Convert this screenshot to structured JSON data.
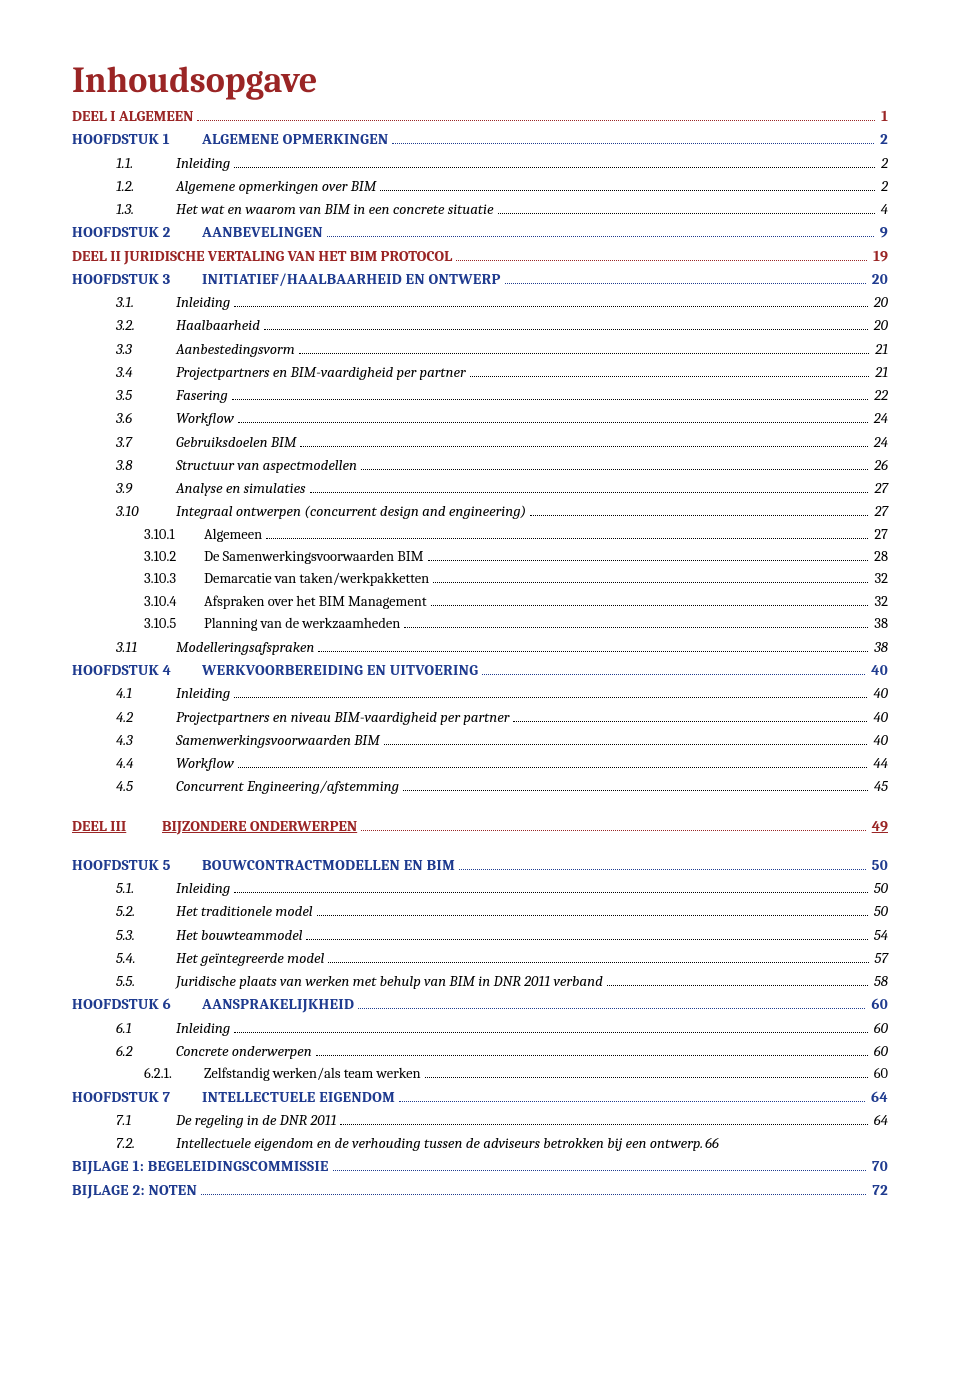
{
  "title": "Inhoudsopgave",
  "colors": {
    "accent_red": "#9a2525",
    "accent_blue": "#1f3b8f",
    "text_black": "#000000",
    "background": "#ffffff"
  },
  "typography": {
    "title_fontsize_pt": 27,
    "body_fontsize_pt": 11.5,
    "font_family": "Cambria"
  },
  "toc": [
    {
      "type": "part",
      "label": "DEEL I ALGEMEEN",
      "page": "1",
      "color": "red",
      "bold": true,
      "level": 0
    },
    {
      "type": "chapter",
      "num": "HOOFDSTUK 1",
      "label": "ALGEMENE OPMERKINGEN",
      "page": "2",
      "color": "blue",
      "bold": true,
      "smallcaps": true,
      "level": 0
    },
    {
      "type": "section",
      "num": "1.1.",
      "label": "Inleiding",
      "page": "2",
      "color": "black",
      "italic": true,
      "level": 1
    },
    {
      "type": "section",
      "num": "1.2.",
      "label": "Algemene opmerkingen over BIM",
      "page": "2",
      "color": "black",
      "italic": true,
      "level": 1
    },
    {
      "type": "section",
      "num": "1.3.",
      "label": "Het wat en waarom van BIM in een concrete situatie",
      "page": "4",
      "color": "black",
      "italic": true,
      "level": 1
    },
    {
      "type": "chapter",
      "num": "HOOFDSTUK 2",
      "label": "AANBEVELINGEN",
      "page": "9",
      "color": "blue",
      "bold": true,
      "smallcaps": true,
      "level": 0
    },
    {
      "type": "part",
      "label": "DEEL II JURIDISCHE VERTALING VAN HET BIM PROTOCOL",
      "page": "19",
      "color": "red",
      "bold": true,
      "level": 0
    },
    {
      "type": "chapter",
      "num": "HOOFDSTUK 3",
      "label": "INITIATIEF/HAALBAARHEID EN ONTWERP",
      "page": "20",
      "color": "blue",
      "bold": true,
      "smallcaps": true,
      "level": 0
    },
    {
      "type": "section",
      "num": "3.1.",
      "label": "Inleiding",
      "page": "20",
      "color": "black",
      "italic": true,
      "level": 1
    },
    {
      "type": "section",
      "num": "3.2.",
      "label": "Haalbaarheid",
      "page": "20",
      "color": "black",
      "italic": true,
      "level": 1
    },
    {
      "type": "section",
      "num": "3.3",
      "label": "Aanbestedingsvorm",
      "page": "21",
      "color": "black",
      "italic": true,
      "level": 1
    },
    {
      "type": "section",
      "num": "3.4",
      "label": "Projectpartners en BIM-vaardigheid per partner",
      "page": "21",
      "color": "black",
      "italic": true,
      "level": 1
    },
    {
      "type": "section",
      "num": "3.5",
      "label": "Fasering",
      "page": "22",
      "color": "black",
      "italic": true,
      "level": 1
    },
    {
      "type": "section",
      "num": "3.6",
      "label": "Workflow",
      "page": "24",
      "color": "black",
      "italic": true,
      "level": 1
    },
    {
      "type": "section",
      "num": "3.7",
      "label": "Gebruiksdoelen BIM",
      "page": "24",
      "color": "black",
      "italic": true,
      "level": 1
    },
    {
      "type": "section",
      "num": "3.8",
      "label": "Structuur van aspectmodellen",
      "page": "26",
      "color": "black",
      "italic": true,
      "level": 1
    },
    {
      "type": "section",
      "num": "3.9",
      "label": "Analyse en simulaties",
      "page": "27",
      "color": "black",
      "italic": true,
      "level": 1
    },
    {
      "type": "section",
      "num": "3.10",
      "label": "Integraal ontwerpen (concurrent design and engineering)",
      "page": "27",
      "color": "black",
      "italic": true,
      "level": 1
    },
    {
      "type": "subsection",
      "num": "3.10.1",
      "label": "Algemeen",
      "page": "27",
      "color": "black",
      "level": 2
    },
    {
      "type": "subsection",
      "num": "3.10.2",
      "label": "De Samenwerkingsvoorwaarden BIM",
      "page": "28",
      "color": "black",
      "level": 2
    },
    {
      "type": "subsection",
      "num": "3.10.3",
      "label": "Demarcatie van taken/werkpakketten",
      "page": "32",
      "color": "black",
      "level": 2
    },
    {
      "type": "subsection",
      "num": "3.10.4",
      "label": "Afspraken over het BIM Management",
      "page": "32",
      "color": "black",
      "level": 2
    },
    {
      "type": "subsection",
      "num": "3.10.5",
      "label": "Planning van de werkzaamheden",
      "page": "38",
      "color": "black",
      "level": 2
    },
    {
      "type": "section",
      "num": "3.11",
      "label": "Modelleringsafspraken",
      "page": "38",
      "color": "black",
      "italic": true,
      "level": 1
    },
    {
      "type": "chapter",
      "num": "HOOFDSTUK 4",
      "label": "WERKVOORBEREIDING EN UITVOERING",
      "page": "40",
      "color": "blue",
      "bold": true,
      "smallcaps": true,
      "level": 0
    },
    {
      "type": "section",
      "num": "4.1",
      "label": "Inleiding",
      "page": "40",
      "color": "black",
      "italic": true,
      "level": 1
    },
    {
      "type": "section",
      "num": "4.2",
      "label": "Projectpartners en niveau BIM-vaardigheid per partner",
      "page": "40",
      "color": "black",
      "italic": true,
      "level": 1
    },
    {
      "type": "section",
      "num": "4.3",
      "label": "Samenwerkingsvoorwaarden BIM",
      "page": "40",
      "color": "black",
      "italic": true,
      "level": 1
    },
    {
      "type": "section",
      "num": "4.4",
      "label": "Workflow",
      "page": "44",
      "color": "black",
      "italic": true,
      "level": 1
    },
    {
      "type": "section",
      "num": "4.5",
      "label": "Concurrent Engineering/afstemming",
      "page": "45",
      "color": "black",
      "italic": true,
      "level": 1
    },
    {
      "type": "gap"
    },
    {
      "type": "part_u",
      "num": "DEEL III",
      "label": "BIJZONDERE ONDERWERPEN",
      "page": "49",
      "color": "red",
      "bold": true,
      "underline": true,
      "level": 0
    },
    {
      "type": "gap"
    },
    {
      "type": "chapter",
      "num": "HOOFDSTUK 5",
      "label": "BOUWCONTRACTMODELLEN EN BIM",
      "page": "50",
      "color": "blue",
      "bold": true,
      "smallcaps": true,
      "level": 0
    },
    {
      "type": "section",
      "num": "5.1.",
      "label": "Inleiding",
      "page": "50",
      "color": "black",
      "italic": true,
      "level": 1
    },
    {
      "type": "section",
      "num": "5.2.",
      "label": " Het traditionele model",
      "page": "50",
      "color": "black",
      "italic": true,
      "level": 1
    },
    {
      "type": "section",
      "num": "5.3.",
      "label": "Het bouwteammodel",
      "page": "54",
      "color": "black",
      "italic": true,
      "level": 1
    },
    {
      "type": "section",
      "num": "5.4.",
      "label": "Het geïntegreerde model",
      "page": "57",
      "color": "black",
      "italic": true,
      "level": 1
    },
    {
      "type": "section",
      "num": "5.5.",
      "label": "Juridische plaats van werken met behulp van BIM in DNR 2011 verband",
      "page": "58",
      "color": "black",
      "italic": true,
      "level": 1
    },
    {
      "type": "chapter",
      "num": "HOOFDSTUK 6",
      "label": "AANSPRAKELIJKHEID",
      "page": "60",
      "color": "blue",
      "bold": true,
      "smallcaps": true,
      "level": 0
    },
    {
      "type": "section",
      "num": "6.1",
      "label": "Inleiding",
      "page": "60",
      "color": "black",
      "italic": true,
      "level": 1
    },
    {
      "type": "section",
      "num": "6.2",
      "label": "Concrete onderwerpen",
      "page": "60",
      "color": "black",
      "italic": true,
      "level": 1
    },
    {
      "type": "subsection",
      "num": "6.2.1.",
      "label": "Zelfstandig werken/als team werken",
      "page": "60",
      "color": "black",
      "level": 2
    },
    {
      "type": "chapter",
      "num": "HOOFDSTUK 7",
      "label": "INTELLECTUELE EIGENDOM",
      "page": "64",
      "color": "blue",
      "bold": true,
      "smallcaps": true,
      "level": 0
    },
    {
      "type": "section",
      "num": "7.1",
      "label": "De regeling in de DNR 2011",
      "page": "64",
      "color": "black",
      "italic": true,
      "level": 1
    },
    {
      "type": "section",
      "num": "7.2.",
      "label": "Intellectuele eigendom en de verhouding tussen de adviseurs betrokken bij een ontwerp",
      "page": "66",
      "color": "black",
      "italic": true,
      "level": 1,
      "noleader": true,
      "sep": "."
    },
    {
      "type": "appendix",
      "label": "BIJLAGE 1: BEGELEIDINGSCOMMISSIE",
      "page": "70",
      "color": "blue",
      "bold": true,
      "smallcaps": true,
      "level": 0
    },
    {
      "type": "appendix",
      "label": "BIJLAGE 2: NOTEN",
      "page": "72",
      "color": "blue",
      "bold": true,
      "smallcaps": true,
      "level": 0
    }
  ]
}
